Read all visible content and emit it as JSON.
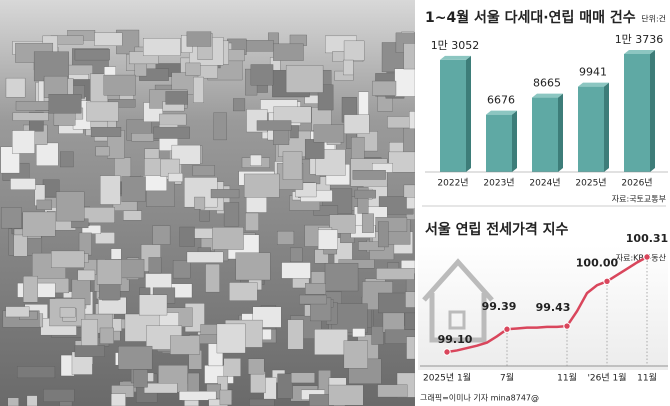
{
  "chart_data": [
    {
      "type": "bar",
      "title": "1~4월 서울 다세대·연립 매매 건수",
      "unit": "단위:건",
      "categories": [
        "2022년",
        "2023년",
        "2024년",
        "2025년",
        "2026년"
      ],
      "values": [
        13052,
        6676,
        8665,
        9941,
        13736
      ],
      "value_labels": [
        "1만 3052",
        "6676",
        "8665",
        "9941",
        "1만 3736"
      ],
      "color": "#5fa9a4",
      "source": "자료:국토교통부"
    },
    {
      "type": "line",
      "title": "서울 연립 전세가격 지수",
      "categories": [
        "2025년 1월",
        null,
        null,
        null,
        null,
        null,
        "7월",
        null,
        null,
        null,
        null,
        null,
        "11월",
        null,
        null,
        null,
        "'26년 1월",
        null,
        null,
        null,
        "11월"
      ],
      "values": [
        99.1,
        99.12,
        99.15,
        99.18,
        99.22,
        99.3,
        99.39,
        99.4,
        99.41,
        99.41,
        99.42,
        99.42,
        99.43,
        99.62,
        99.85,
        99.95,
        100.0,
        100.08,
        100.16,
        100.24,
        100.31
      ],
      "value_labels": [
        "99.10",
        null,
        null,
        null,
        null,
        null,
        "99.39",
        null,
        null,
        null,
        null,
        null,
        "99.43",
        null,
        null,
        null,
        "100.00",
        null,
        null,
        null,
        "100.31"
      ],
      "color": "#d9465c",
      "source": "자료:KB부동산"
    }
  ],
  "credit": "그래픽=이미나 기자 mina8747@"
}
